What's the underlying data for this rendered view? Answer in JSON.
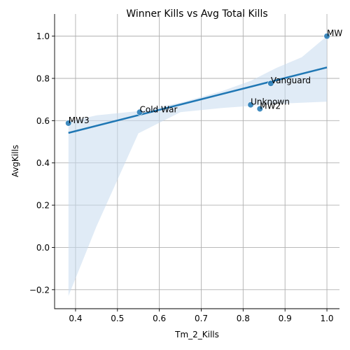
{
  "chart_data": {
    "type": "scatter",
    "title": "Winner Kills vs Avg Total Kills",
    "xlabel": "Tm_2_Kills",
    "ylabel": "AvgKills",
    "xlim": [
      0.35,
      1.03
    ],
    "ylim": [
      -0.29,
      1.065
    ],
    "xticks": [
      0.4,
      0.5,
      0.6,
      0.7,
      0.8,
      0.9,
      1.0
    ],
    "xtick_labels": [
      "0.4",
      "0.5",
      "0.6",
      "0.7",
      "0.8",
      "0.9",
      "1.0"
    ],
    "yticks": [
      -0.2,
      0.0,
      0.2,
      0.4,
      0.6,
      0.8,
      1.0
    ],
    "ytick_labels": [
      "−0.2",
      "0.0",
      "0.2",
      "0.4",
      "0.6",
      "0.8",
      "1.0"
    ],
    "grid": true,
    "points": [
      {
        "label": "MW3",
        "x": 0.383,
        "y": 0.588
      },
      {
        "label": "Cold War",
        "x": 0.553,
        "y": 0.64
      },
      {
        "label": "Unknown",
        "x": 0.818,
        "y": 0.675
      },
      {
        "label": "MW2",
        "x": 0.84,
        "y": 0.656
      },
      {
        "label": "Vanguard",
        "x": 0.866,
        "y": 0.776
      },
      {
        "label": "MW",
        "x": 1.0,
        "y": 1.0
      }
    ],
    "regression": {
      "x0": 0.383,
      "y0": 0.542,
      "x1": 1.0,
      "y1": 0.852
    },
    "confidence_band": {
      "x": [
        0.383,
        0.45,
        0.55,
        0.65,
        0.75,
        0.82,
        0.88,
        0.94,
        1.0
      ],
      "upper": [
        0.595,
        0.625,
        0.645,
        0.685,
        0.74,
        0.79,
        0.85,
        0.9,
        1.0
      ],
      "lower": [
        -0.23,
        0.1,
        0.54,
        0.64,
        0.66,
        0.67,
        0.68,
        0.685,
        0.69
      ]
    },
    "colors": {
      "points": "#1f77b4",
      "line": "#1f77b4",
      "band": "#c6dbef"
    }
  }
}
